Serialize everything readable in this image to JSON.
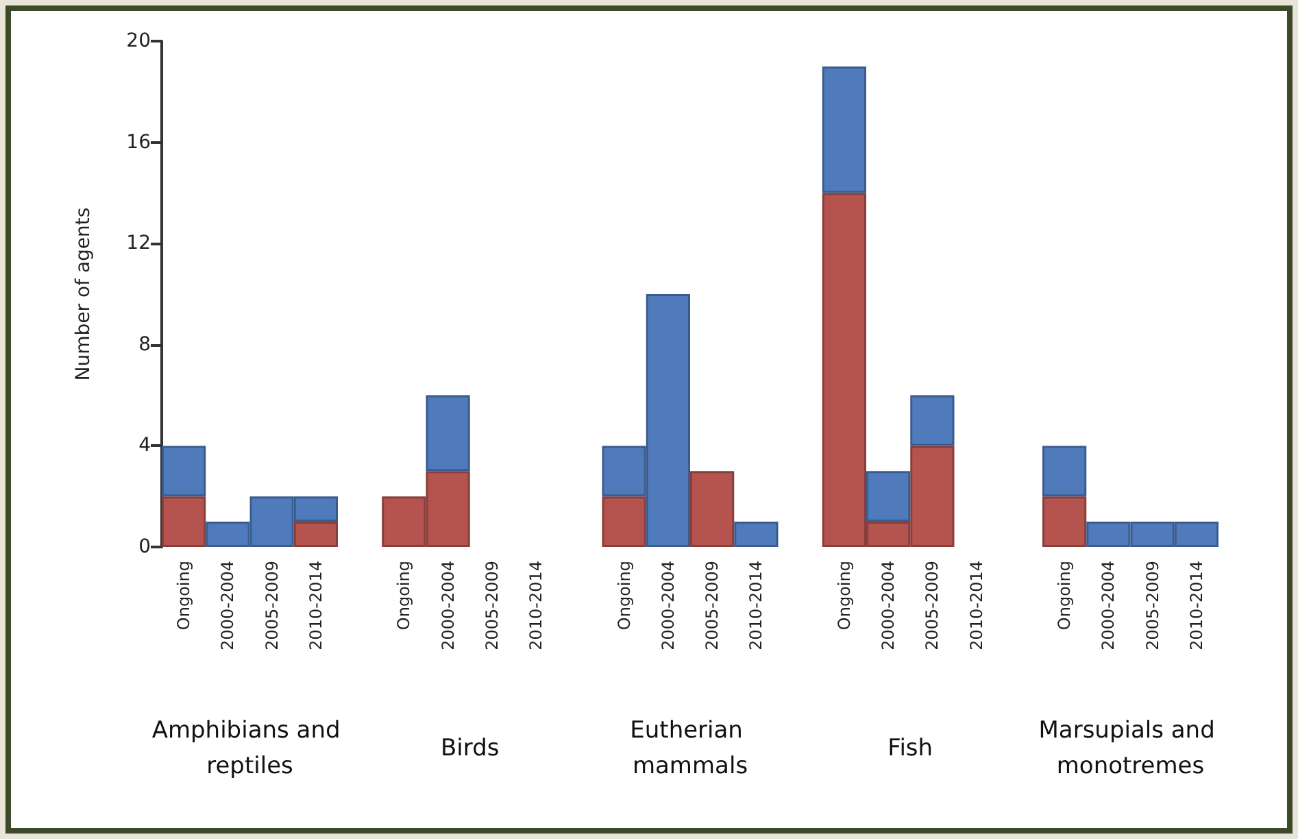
{
  "chart_data": {
    "type": "bar",
    "stacked": true,
    "ylabel": "Number of agents",
    "categories": [
      "Ongoing",
      "2000-2004",
      "2005-2009",
      "2010-2014",
      null,
      "Ongoing",
      "2000-2004",
      "2005-2009",
      "2010-2014",
      null,
      "Ongoing",
      "2000-2004",
      "2005-2009",
      "2010-2014",
      null,
      "Ongoing",
      "2000-2004",
      "2005-2009",
      "2010-2014",
      null,
      "Ongoing",
      "2000-2004",
      "2005-2009",
      "2010-2014"
    ],
    "series": [
      {
        "color": "#b5534f",
        "values": [
          2,
          0,
          0,
          1,
          null,
          2,
          3,
          0,
          0,
          null,
          2,
          0,
          3,
          0,
          null,
          14,
          1,
          4,
          0,
          null,
          2,
          0,
          0,
          0
        ]
      },
      {
        "color": "#4f7bbd",
        "values": [
          2,
          1,
          2,
          1,
          null,
          0,
          3,
          0,
          0,
          null,
          2,
          10,
          0,
          1,
          null,
          5,
          2,
          2,
          0,
          null,
          2,
          1,
          1,
          1
        ]
      }
    ],
    "ylim": [
      0,
      20
    ],
    "yticks": [
      0,
      4,
      8,
      12,
      16,
      20
    ],
    "grid": false,
    "annotations": [
      "Amphibians and reptiles",
      "Birds",
      "Eutherian mammals",
      "Fish",
      "Marsupials and monotremes"
    ]
  }
}
